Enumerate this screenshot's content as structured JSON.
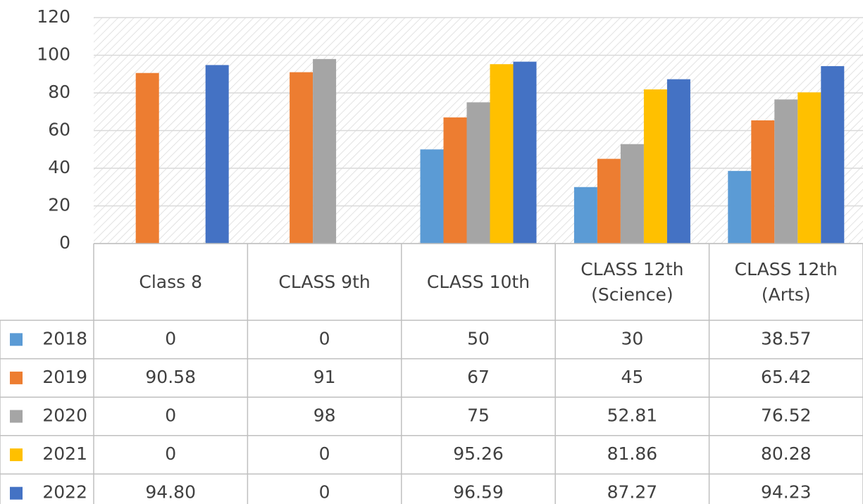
{
  "chart_data": {
    "type": "bar",
    "categories": [
      "Class 8",
      "CLASS 9th",
      "CLASS 10th",
      "CLASS 12th (Science)",
      "CLASS 12th (Arts)"
    ],
    "series": [
      {
        "name": "2018",
        "color": "#5b9bd5",
        "values": [
          0,
          0,
          50,
          30,
          38.57
        ]
      },
      {
        "name": "2019",
        "color": "#ed7d31",
        "values": [
          90.58,
          91,
          67,
          45,
          65.42
        ]
      },
      {
        "name": "2020",
        "color": "#a5a5a5",
        "values": [
          0,
          98,
          75,
          52.81,
          76.52
        ]
      },
      {
        "name": "2021",
        "color": "#ffc000",
        "values": [
          0,
          0,
          95.26,
          81.86,
          80.28
        ]
      },
      {
        "name": "2022",
        "color": "#4472c4",
        "values": [
          94.8,
          0,
          96.59,
          87.27,
          94.23
        ],
        "value_labels": [
          "94.80",
          "0",
          "96.59",
          "87.27",
          "94.23"
        ]
      }
    ],
    "ylim": [
      0,
      120
    ],
    "yticks": [
      0,
      20,
      40,
      60,
      80,
      100,
      120
    ],
    "grid": true,
    "data_table": true
  }
}
